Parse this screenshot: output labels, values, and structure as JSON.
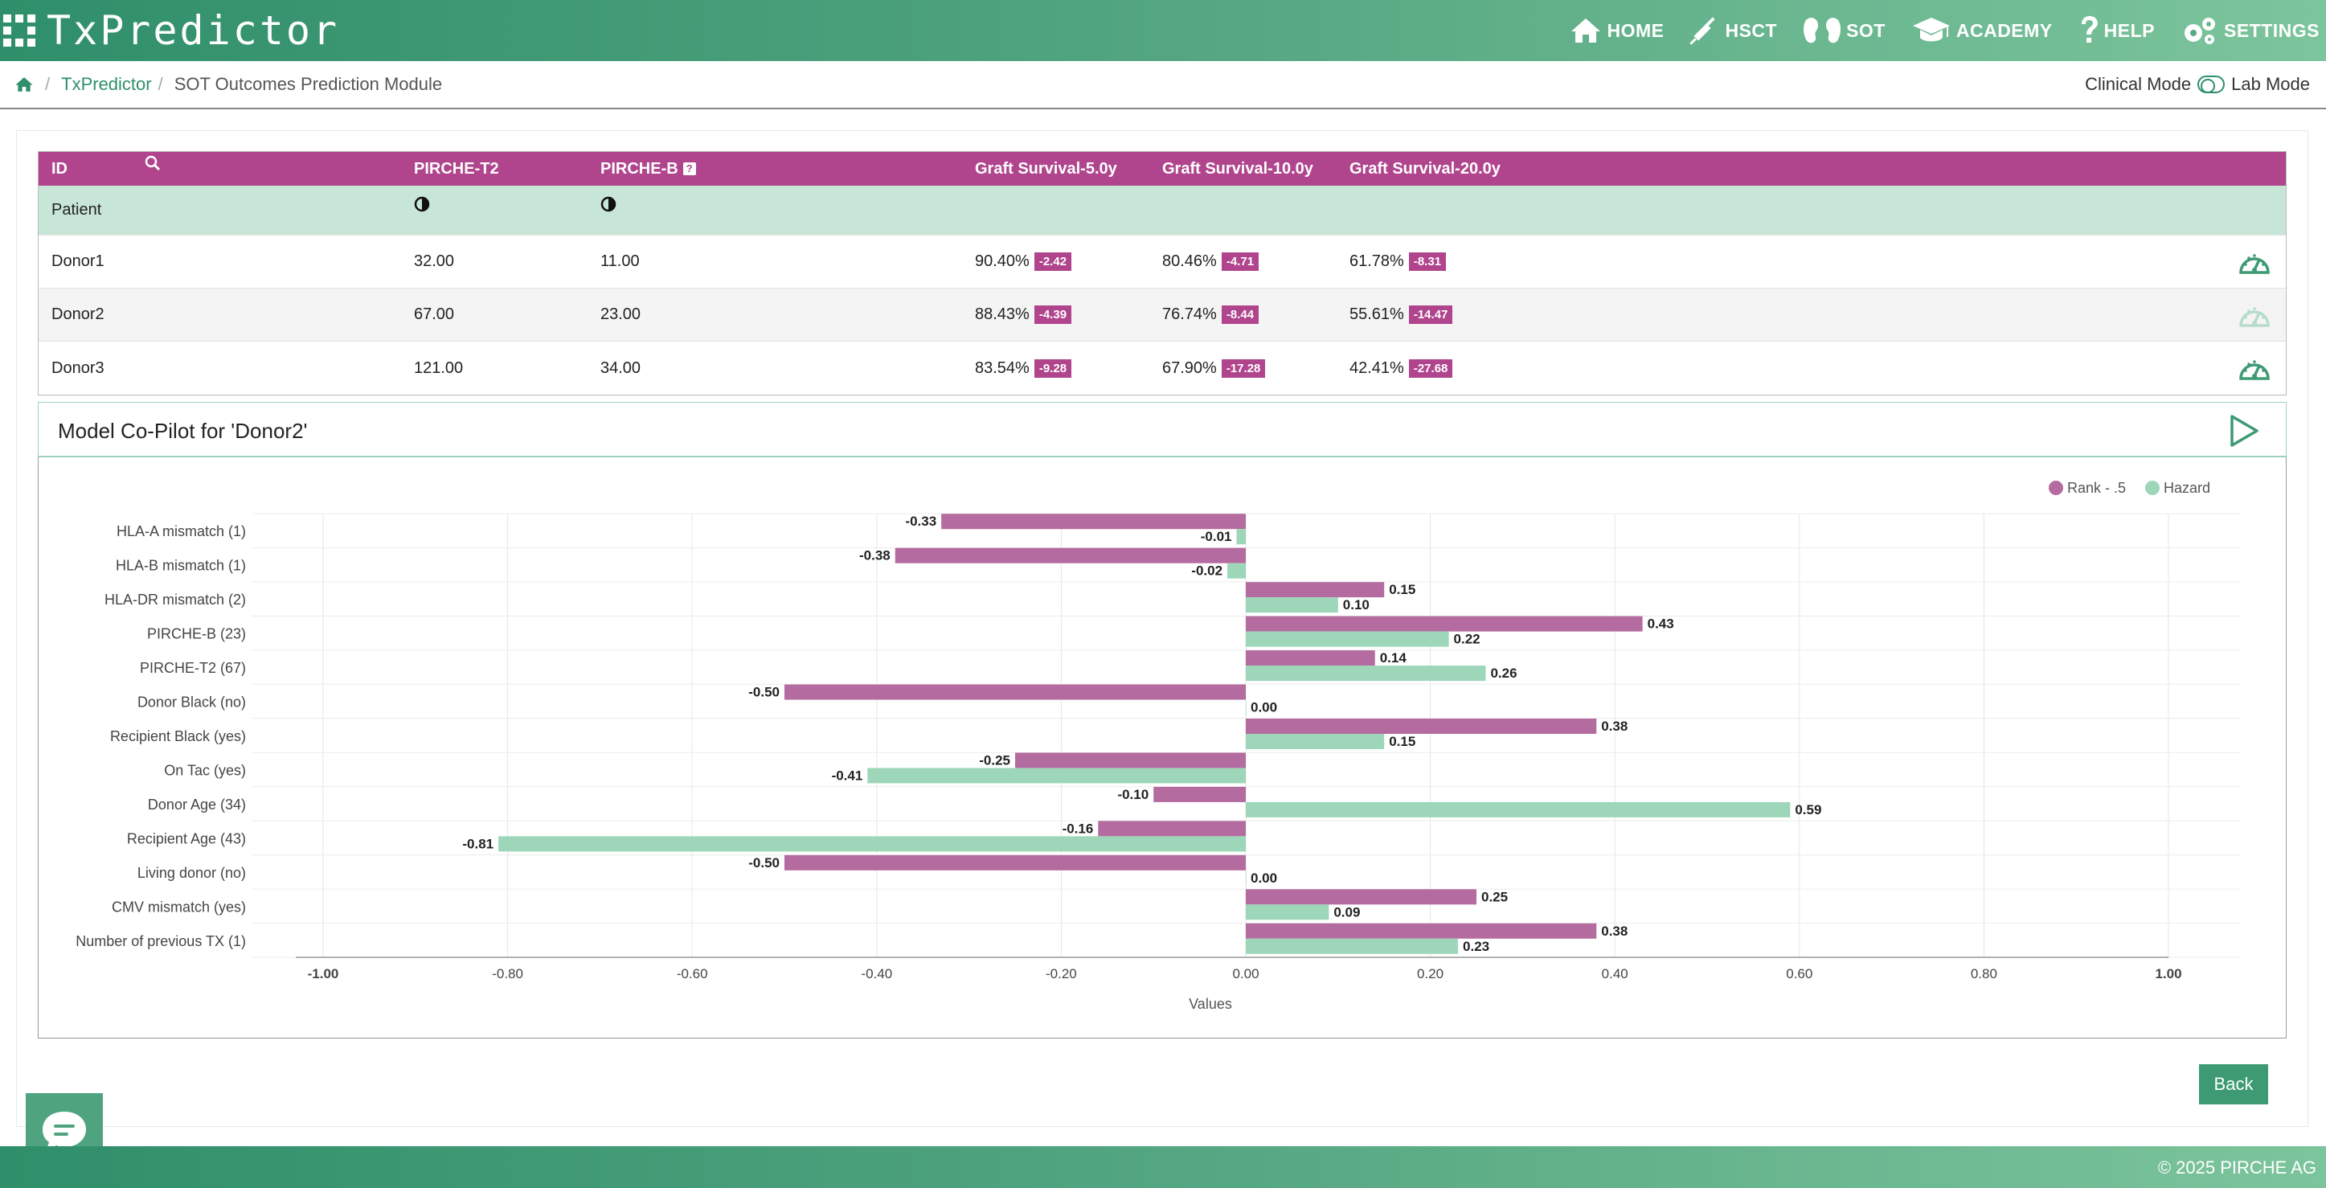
{
  "header": {
    "brand": "TxPredictor",
    "nav": [
      {
        "label": "HOME",
        "icon": "home-icon"
      },
      {
        "label": "HSCT",
        "icon": "syringe-icon"
      },
      {
        "label": "SOT",
        "icon": "kidney-icon"
      },
      {
        "label": "ACADEMY",
        "icon": "graduation-cap-icon"
      },
      {
        "label": "HELP",
        "icon": "question-icon"
      },
      {
        "label": "SETTINGS",
        "icon": "gears-icon"
      }
    ]
  },
  "breadcrumb": {
    "home_icon": "home-icon",
    "sep": "/",
    "link": "TxPredictor",
    "current": "SOT Outcomes Prediction Module"
  },
  "mode": {
    "left": "Clinical Mode",
    "right": "Lab Mode"
  },
  "table": {
    "headers": {
      "id": "ID",
      "pirche_t2": "PIRCHE-T2",
      "pirche_b": "PIRCHE-B",
      "gs5": "Graft Survival-5.0y",
      "gs10": "Graft Survival-10.0y",
      "gs20": "Graft Survival-20.0y"
    },
    "patient_label": "Patient",
    "rows": [
      {
        "id": "Donor1",
        "t2": "32.00",
        "b": "11.00",
        "gs5": "90.40%",
        "gs5d": "-2.42",
        "gs10": "80.46%",
        "gs10d": "-4.71",
        "gs20": "61.78%",
        "gs20d": "-8.31"
      },
      {
        "id": "Donor2",
        "t2": "67.00",
        "b": "23.00",
        "gs5": "88.43%",
        "gs5d": "-4.39",
        "gs10": "76.74%",
        "gs10d": "-8.44",
        "gs20": "55.61%",
        "gs20d": "-14.47"
      },
      {
        "id": "Donor3",
        "t2": "121.00",
        "b": "34.00",
        "gs5": "83.54%",
        "gs5d": "-9.28",
        "gs10": "67.90%",
        "gs10d": "-17.28",
        "gs20": "42.41%",
        "gs20d": "-27.68"
      }
    ]
  },
  "copilot": {
    "title": "Model Co-Pilot for 'Donor2'"
  },
  "chart_data": {
    "type": "bar",
    "orientation": "horizontal",
    "categories": [
      "HLA-A mismatch (1)",
      "HLA-B mismatch (1)",
      "HLA-DR mismatch (2)",
      "PIRCHE-B (23)",
      "PIRCHE-T2 (67)",
      "Donor Black (no)",
      "Recipient Black (yes)",
      "On Tac (yes)",
      "Donor Age (34)",
      "Recipient Age (43)",
      "Living donor (no)",
      "CMV mismatch (yes)",
      "Number of previous TX (1)"
    ],
    "series": [
      {
        "name": "Rank - .5",
        "color": "#b46b9f",
        "values": [
          -0.33,
          -0.38,
          0.15,
          0.43,
          0.14,
          -0.5,
          0.38,
          -0.25,
          -0.1,
          -0.16,
          -0.5,
          0.25,
          0.38
        ],
        "labels": [
          "-0.33",
          "-0.38",
          "0.15",
          "0.43",
          "0.14",
          "-0.50",
          "0.38",
          "-0.25",
          "-0.10",
          "-0.16",
          "-0.50",
          "0.25",
          "0.38"
        ]
      },
      {
        "name": "Hazard",
        "color": "#9ed6b9",
        "values": [
          -0.01,
          -0.02,
          0.1,
          0.22,
          0.26,
          0.0,
          0.15,
          -0.41,
          0.59,
          -0.81,
          0.0,
          0.09,
          0.23
        ],
        "labels": [
          "-0.01",
          "-0.02",
          "0.10",
          "0.22",
          "0.26",
          "0.00",
          "0.15",
          "-0.41",
          "0.59",
          "-0.81",
          "0.00",
          "0.09",
          "0.23"
        ]
      }
    ],
    "xlim": [
      -1.0,
      1.0
    ],
    "xticks": [
      -1.0,
      -0.8,
      -0.6,
      -0.4,
      -0.2,
      0.0,
      0.2,
      0.4,
      0.6,
      0.8,
      1.0
    ],
    "xtick_labels": [
      "-1.00",
      "-0.80",
      "-0.60",
      "-0.40",
      "-0.20",
      "0.00",
      "0.20",
      "0.40",
      "0.60",
      "0.80",
      "1.00"
    ],
    "xlabel": "Values",
    "legend": "top-right",
    "grid": true
  },
  "back_label": "Back",
  "chat_icon": "chat-bubble-icon",
  "footer": {
    "text": "© 2025 PIRCHE AG"
  }
}
